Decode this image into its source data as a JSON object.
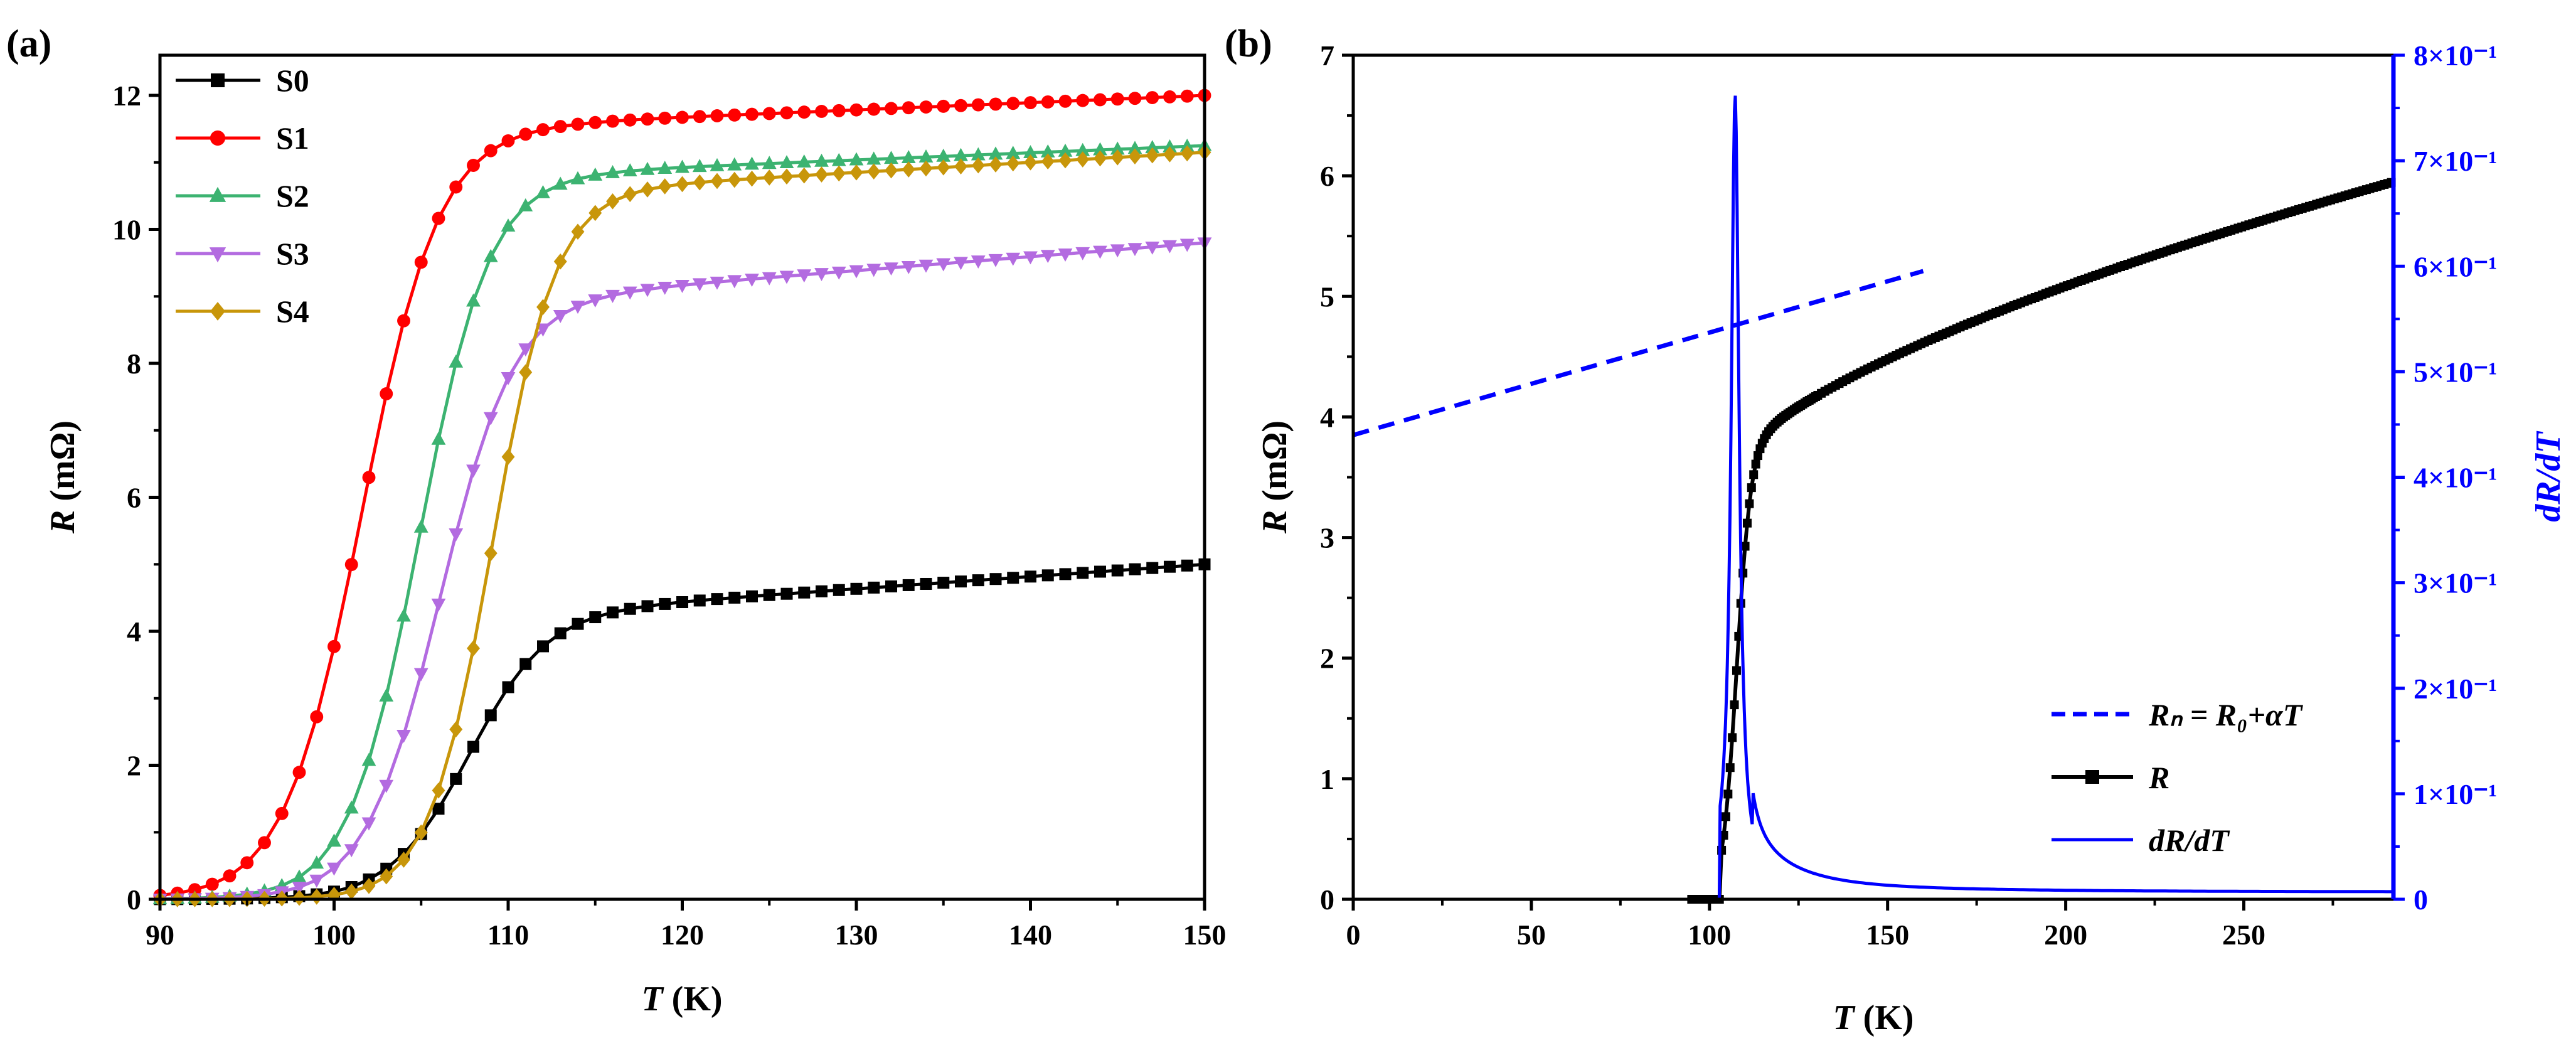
{
  "chart_data": [
    {
      "panel": "(a)",
      "type": "line",
      "xlabel_var": "T",
      "xlabel_unit": " (K)",
      "ylabel_var": "R",
      "ylabel_unit": " (mΩ)",
      "xlim": [
        90,
        150
      ],
      "ylim": [
        0,
        12.6
      ],
      "xticks": [
        "90",
        "100",
        "110",
        "120",
        "130",
        "140",
        "150"
      ],
      "yticks": [
        "0",
        "2",
        "4",
        "6",
        "8",
        "10",
        "12"
      ],
      "series": [
        {
          "name": "S0",
          "color": "#000000",
          "marker": "square",
          "Tc": 107.8,
          "width": 2.2,
          "saturation": 5.0,
          "tail": 0.9
        },
        {
          "name": "S1",
          "color": "#ff0000",
          "marker": "circle",
          "Tc": 101.6,
          "width": 2.2,
          "saturation": 12.0,
          "tail": 0.6
        },
        {
          "name": "S2",
          "color": "#3cb371",
          "marker": "triangle-up",
          "Tc": 104.9,
          "width": 2.0,
          "saturation": 11.25,
          "tail": 0.55
        },
        {
          "name": "S3",
          "color": "#b36be0",
          "marker": "triangle-down",
          "Tc": 106.1,
          "width": 2.1,
          "saturation": 9.8,
          "tail": 1.05
        },
        {
          "name": "S4",
          "color": "#c8960a",
          "marker": "diamond",
          "Tc": 109.1,
          "width": 1.8,
          "saturation": 11.15,
          "tail": 0.7
        }
      ]
    },
    {
      "panel": "(b)",
      "type": "line",
      "xlabel_var": "T",
      "xlabel_unit": " (K)",
      "ylabel_var": "R",
      "ylabel_unit": " (mΩ)",
      "y2label": "dR/dT",
      "xlim": [
        0,
        292
      ],
      "ylim": [
        0,
        7
      ],
      "y2lim": [
        0,
        0.8
      ],
      "xticks": [
        "0",
        "50",
        "100",
        "150",
        "200",
        "250"
      ],
      "yticks": [
        "0",
        "1",
        "2",
        "3",
        "4",
        "5",
        "6",
        "7"
      ],
      "y2ticks": [
        "0",
        "1×10⁻¹",
        "2×10⁻¹",
        "3×10⁻¹",
        "4×10⁻¹",
        "5×10⁻¹",
        "6×10⁻¹",
        "7×10⁻¹",
        "8×10⁻¹"
      ],
      "normal_state_fit": {
        "R0": 3.85,
        "alpha": 0.0085,
        "x_range": [
          0,
          160
        ],
        "color": "#0000ff"
      },
      "R_curve": {
        "start_T": 95,
        "onset_T": 103,
        "Tc": 107.5,
        "width": 2.0,
        "color": "#000000"
      },
      "dRdT_peak": {
        "T": 107.2,
        "value": 0.745,
        "baseline": 0.007,
        "color": "#0000ff"
      },
      "legend": [
        {
          "key": "fit",
          "label": "Rₙ = R₀+αT"
        },
        {
          "key": "R",
          "label": "R"
        },
        {
          "key": "dRdT",
          "label": "dR/dT"
        }
      ]
    }
  ]
}
